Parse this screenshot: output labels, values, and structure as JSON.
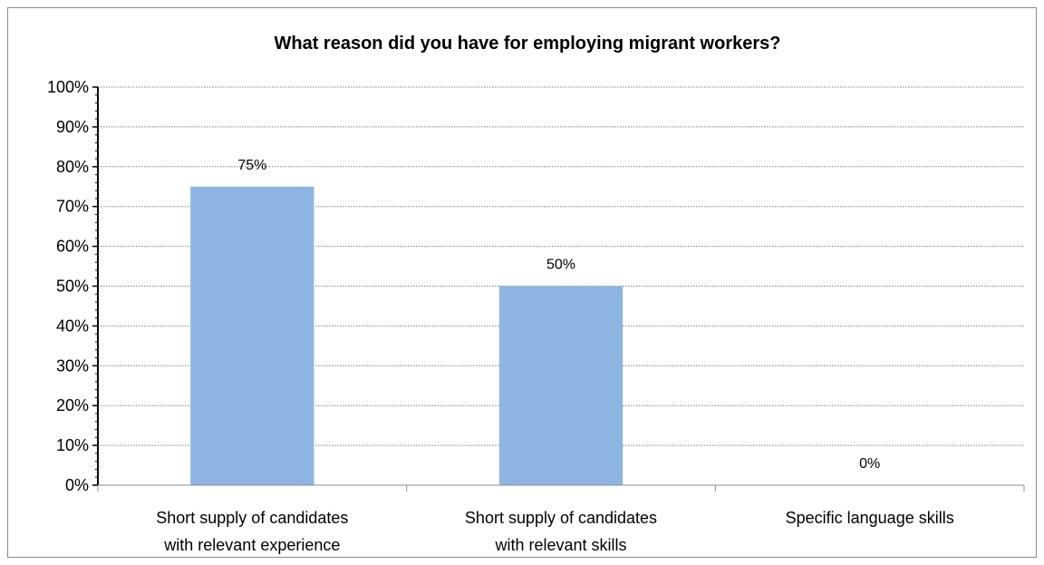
{
  "chart_data": {
    "type": "bar",
    "title": "What reason did you have for employing migrant workers?",
    "categories": [
      [
        "Short supply of candidates",
        "with relevant experience"
      ],
      [
        "Short supply of candidates",
        "with relevant skills"
      ],
      [
        "Specific language skills"
      ]
    ],
    "values": [
      75,
      50,
      0
    ],
    "data_labels": [
      "75%",
      "50%",
      "0%"
    ],
    "y_ticks": [
      "0%",
      "10%",
      "20%",
      "30%",
      "40%",
      "50%",
      "60%",
      "70%",
      "80%",
      "90%",
      "100%"
    ],
    "ylim": [
      0,
      100
    ],
    "grid": true,
    "legend": "none",
    "bar_color": "#8eb4e3"
  }
}
